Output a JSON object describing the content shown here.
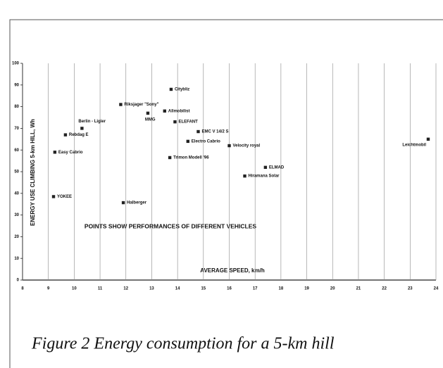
{
  "chart_data": {
    "type": "scatter",
    "caption": "Figure 2  Energy consumption for a 5-km hill",
    "x_label": "AVERAGE SPEED, km/h",
    "y_label": "ENERGY USE CLIMBING 5-km HILL, Wh",
    "annotation": "POINTS SHOW PERFORMANCES OF DIFFERENT VEHICLES",
    "xlim": [
      8,
      24
    ],
    "xticks": [
      8,
      9,
      10,
      11,
      12,
      13,
      14,
      15,
      16,
      17,
      18,
      19,
      20,
      21,
      22,
      23,
      24
    ],
    "ylim": [
      0,
      100
    ],
    "yticks": [
      0,
      10,
      20,
      30,
      40,
      50,
      60,
      70,
      80,
      90,
      100
    ],
    "grid": true,
    "color": "#222222",
    "labels": [
      "YOKEE",
      "Easy Cabrio",
      "Rebdag E",
      "Berlin - Ligier",
      "Halberger",
      "Riksjager \"Sony\"",
      "MMG",
      "Allmobilist",
      "Citybliz",
      "ELEFANT",
      "Trimon Modell '96",
      "EMC V 14/2 S",
      "Electro Cabrio",
      "Velocity royal",
      "ELMAD",
      "Hiramana Solar",
      "Leichtmobil"
    ],
    "x": [
      9.2,
      9.25,
      9.66,
      10.3,
      11.9,
      11.8,
      12.85,
      13.5,
      13.75,
      13.9,
      13.7,
      14.8,
      14.4,
      16.0,
      17.4,
      16.6,
      23.7
    ],
    "values": [
      38.5,
      59,
      67,
      70,
      35.7,
      81,
      77,
      78,
      88,
      73,
      56.5,
      68.5,
      64,
      62,
      52,
      48,
      65
    ]
  }
}
